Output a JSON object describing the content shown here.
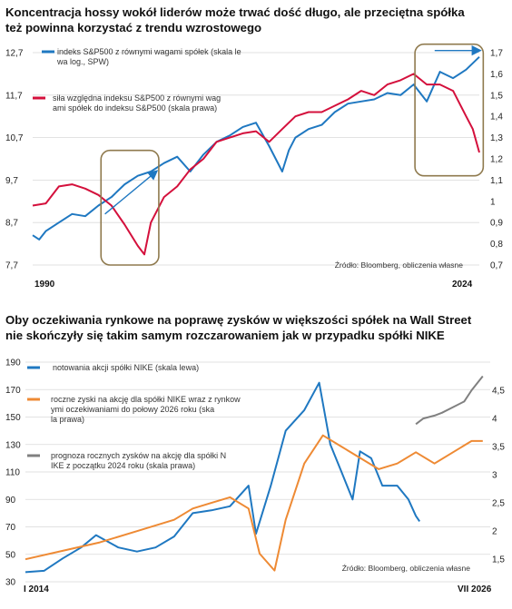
{
  "chart1_title": [
    "Koncentracja hossy wokół liderów może trwać dość długo, ale przeciętna spółka",
    "też powinna korzystać z trendu wzrostowego"
  ],
  "chart2_title": [
    "Oby oczekiwania rynkowe na poprawę zysków w większości spółek na Wall Street",
    "nie skończyły się takim samym rozczarowaniem jak w przypadku spółki NIKE"
  ],
  "chart_data": [
    {
      "type": "line",
      "x_tick_labels": [
        "1990",
        "2024"
      ],
      "x_range": [
        1990,
        2024
      ],
      "left_axis": {
        "ticks": [
          "7,7",
          "8,7",
          "9,7",
          "10,7",
          "11,7",
          "12,7"
        ],
        "range": [
          7.7,
          12.7
        ]
      },
      "right_axis": {
        "ticks": [
          "0,7",
          "0,8",
          "0,9",
          "1",
          "1,1",
          "1,2",
          "1,3",
          "1,4",
          "1,5",
          "1,6",
          "1,7"
        ],
        "range": [
          0.7,
          1.7
        ]
      },
      "source": "Źródło: Bloomberg, obliczenia własne",
      "colors": {
        "blue": "#1f78c1",
        "red": "#d4103c",
        "box": "#8f7a4e",
        "grid": "#d9d9d9"
      },
      "series": [
        {
          "name": "indeks S&P500 z równymi wagami spółek (skala lewa log., SPW)",
          "axis": "left",
          "color": "#1f78c1",
          "points": [
            [
              1990,
              8.4
            ],
            [
              1990.5,
              8.3
            ],
            [
              1991,
              8.5
            ],
            [
              1992,
              8.7
            ],
            [
              1993,
              8.9
            ],
            [
              1994,
              8.85
            ],
            [
              1995,
              9.1
            ],
            [
              1996,
              9.3
            ],
            [
              1997,
              9.6
            ],
            [
              1998,
              9.8
            ],
            [
              1999,
              9.9
            ],
            [
              2000,
              10.1
            ],
            [
              2001,
              10.25
            ],
            [
              2002,
              9.9
            ],
            [
              2003,
              10.3
            ],
            [
              2004,
              10.6
            ],
            [
              2005,
              10.75
            ],
            [
              2006,
              10.95
            ],
            [
              2007,
              11.05
            ],
            [
              2008,
              10.5
            ],
            [
              2009,
              9.9
            ],
            [
              2009.5,
              10.4
            ],
            [
              2010,
              10.7
            ],
            [
              2011,
              10.9
            ],
            [
              2012,
              11.0
            ],
            [
              2013,
              11.3
            ],
            [
              2014,
              11.5
            ],
            [
              2015,
              11.55
            ],
            [
              2016,
              11.6
            ],
            [
              2017,
              11.75
            ],
            [
              2018,
              11.7
            ],
            [
              2019,
              11.95
            ],
            [
              2020,
              11.55
            ],
            [
              2021,
              12.25
            ],
            [
              2022,
              12.1
            ],
            [
              2023,
              12.3
            ],
            [
              2024,
              12.6
            ]
          ]
        },
        {
          "name": "siła względna indeksu S&P500 z równymi wagami spółek do indeksu S&P500 (skala prawa)",
          "axis": "right",
          "color": "#d4103c",
          "points": [
            [
              1990,
              0.98
            ],
            [
              1991,
              0.99
            ],
            [
              1992,
              1.07
            ],
            [
              1993,
              1.08
            ],
            [
              1994,
              1.06
            ],
            [
              1995,
              1.03
            ],
            [
              1996,
              0.98
            ],
            [
              1997,
              0.89
            ],
            [
              1998,
              0.79
            ],
            [
              1998.5,
              0.75
            ],
            [
              1999,
              0.9
            ],
            [
              2000,
              1.02
            ],
            [
              2001,
              1.07
            ],
            [
              2002,
              1.15
            ],
            [
              2003,
              1.2
            ],
            [
              2004,
              1.28
            ],
            [
              2005,
              1.3
            ],
            [
              2006,
              1.32
            ],
            [
              2007,
              1.33
            ],
            [
              2008,
              1.28
            ],
            [
              2009,
              1.34
            ],
            [
              2010,
              1.4
            ],
            [
              2011,
              1.42
            ],
            [
              2012,
              1.42
            ],
            [
              2013,
              1.45
            ],
            [
              2014,
              1.48
            ],
            [
              2015,
              1.52
            ],
            [
              2016,
              1.5
            ],
            [
              2017,
              1.55
            ],
            [
              2018,
              1.57
            ],
            [
              2019,
              1.6
            ],
            [
              2020,
              1.55
            ],
            [
              2021,
              1.55
            ],
            [
              2022,
              1.52
            ],
            [
              2023,
              1.4
            ],
            [
              2023.5,
              1.34
            ],
            [
              2024,
              1.23
            ]
          ]
        }
      ],
      "annotations": [
        {
          "kind": "box",
          "x": [
            1995.2,
            1999.6
          ],
          "y": [
            7.7,
            10.4
          ]
        },
        {
          "kind": "arrow",
          "from": [
            1995.5,
            8.9
          ],
          "to": [
            1999.4,
            9.9
          ]
        },
        {
          "kind": "box",
          "x": [
            2019.1,
            2024.3
          ],
          "y": [
            9.8,
            12.9
          ]
        },
        {
          "kind": "arrow",
          "from": [
            2020.6,
            12.75
          ],
          "to": [
            2024.0,
            12.75
          ]
        }
      ]
    },
    {
      "type": "line",
      "x_tick_labels": [
        "I 2014",
        "VII 2026"
      ],
      "x_range": [
        2014.0,
        2026.5
      ],
      "left_axis": {
        "ticks": [
          "30",
          "50",
          "70",
          "90",
          "110",
          "130",
          "150",
          "170",
          "190"
        ],
        "range": [
          30,
          190
        ]
      },
      "right_axis": {
        "ticks": [
          "1,5",
          "2",
          "2,5",
          "3",
          "3,5",
          "4",
          "4,5"
        ],
        "range": [
          1.1,
          5.0
        ]
      },
      "source": "Źródło: Bloomberg, obliczenia własne",
      "colors": {
        "blue": "#1f78c1",
        "orange": "#ee8a34",
        "gray": "#808080",
        "grid": "#d9d9d9"
      },
      "series": [
        {
          "name": "notowania akcji spółki NIKE (skala lewa)",
          "axis": "left",
          "color": "#1f78c1",
          "points": [
            [
              2014.0,
              37
            ],
            [
              2014.5,
              38
            ],
            [
              2015.0,
              47
            ],
            [
              2015.5,
              55
            ],
            [
              2015.9,
              64
            ],
            [
              2016.5,
              55
            ],
            [
              2017.0,
              52
            ],
            [
              2017.5,
              55
            ],
            [
              2018.0,
              63
            ],
            [
              2018.5,
              80
            ],
            [
              2019.0,
              82
            ],
            [
              2019.5,
              85
            ],
            [
              2020.0,
              100
            ],
            [
              2020.2,
              65
            ],
            [
              2020.6,
              100
            ],
            [
              2021.0,
              140
            ],
            [
              2021.5,
              155
            ],
            [
              2021.9,
              175
            ],
            [
              2022.2,
              130
            ],
            [
              2022.5,
              110
            ],
            [
              2022.8,
              90
            ],
            [
              2023.0,
              125
            ],
            [
              2023.3,
              120
            ],
            [
              2023.6,
              100
            ],
            [
              2024.0,
              100
            ],
            [
              2024.3,
              90
            ],
            [
              2024.5,
              78
            ],
            [
              2024.6,
              74
            ]
          ]
        },
        {
          "name": "roczne zyski na akcję dla spółki NIKE wraz z rynkowymi oczekiwaniami do połowy 2026 roku (skala prawa)",
          "axis": "right",
          "color": "#ee8a34",
          "points": [
            [
              2014.0,
              1.5
            ],
            [
              2015.0,
              1.65
            ],
            [
              2016.0,
              1.8
            ],
            [
              2017.0,
              2.0
            ],
            [
              2018.0,
              2.2
            ],
            [
              2018.5,
              2.4
            ],
            [
              2019.0,
              2.5
            ],
            [
              2019.5,
              2.6
            ],
            [
              2020.0,
              2.4
            ],
            [
              2020.3,
              1.6
            ],
            [
              2020.7,
              1.3
            ],
            [
              2021.0,
              2.2
            ],
            [
              2021.5,
              3.2
            ],
            [
              2022.0,
              3.7
            ],
            [
              2022.5,
              3.5
            ],
            [
              2023.0,
              3.3
            ],
            [
              2023.5,
              3.1
            ],
            [
              2024.0,
              3.2
            ],
            [
              2024.5,
              3.4
            ],
            [
              2025.0,
              3.2
            ],
            [
              2025.5,
              3.4
            ],
            [
              2026.0,
              3.6
            ],
            [
              2026.3,
              3.6
            ]
          ]
        },
        {
          "name": "prognoza rocznych zysków na akcję dla spółki NIKE z początku 2024 roku (skala prawa)",
          "axis": "right",
          "color": "#808080",
          "points": [
            [
              2024.5,
              3.9
            ],
            [
              2024.7,
              4.0
            ],
            [
              2025.0,
              4.05
            ],
            [
              2025.2,
              4.1
            ],
            [
              2025.5,
              4.2
            ],
            [
              2025.8,
              4.3
            ],
            [
              2026.0,
              4.5
            ],
            [
              2026.3,
              4.75
            ]
          ]
        }
      ]
    }
  ]
}
